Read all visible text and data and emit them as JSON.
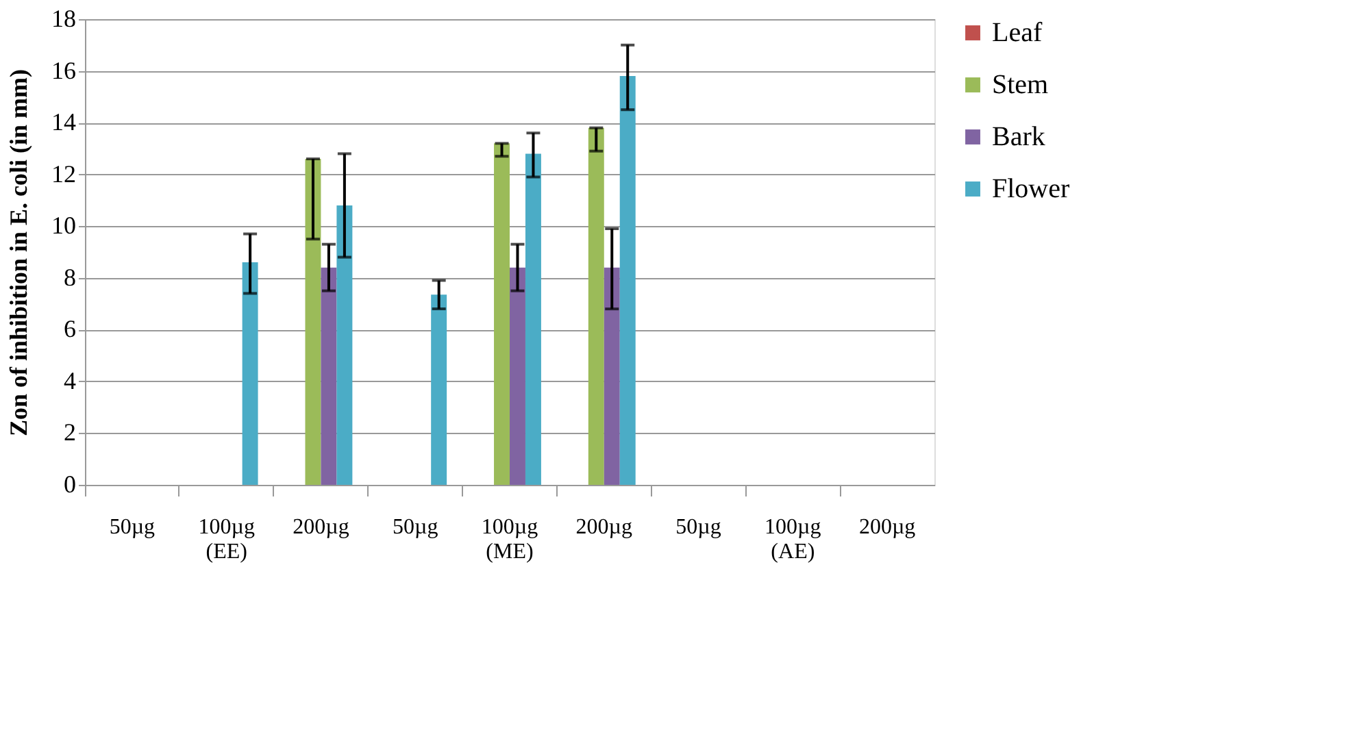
{
  "chart_data": {
    "type": "bar",
    "ylabel": "Zon of inhibition in E. coli (in mm)",
    "categories": [
      "50µg",
      "100µg\n(EE)",
      "200µg",
      "50µg",
      "100µg\n(ME)",
      "200µg",
      "50µg",
      "100µg\n(AE)",
      "200µg"
    ],
    "series": [
      {
        "name": "Leaf",
        "color": "#c0504d",
        "values": [
          null,
          null,
          null,
          null,
          null,
          null,
          null,
          null,
          null
        ]
      },
      {
        "name": "Stem",
        "color": "#9bbb59",
        "values": [
          null,
          null,
          12.6,
          null,
          13.2,
          13.8,
          null,
          null,
          null
        ],
        "errors": [
          null,
          null,
          [
            9.5,
            12.6
          ],
          null,
          [
            12.7,
            13.2
          ],
          [
            12.9,
            13.8
          ],
          null,
          null,
          null
        ]
      },
      {
        "name": "Bark",
        "color": "#8064a2",
        "values": [
          null,
          null,
          8.4,
          null,
          8.4,
          8.4,
          null,
          null,
          null
        ],
        "errors": [
          null,
          null,
          [
            7.5,
            9.3
          ],
          null,
          [
            7.5,
            9.3
          ],
          [
            6.8,
            9.9
          ],
          null,
          null,
          null
        ]
      },
      {
        "name": "Flower",
        "color": "#4bacc6",
        "values": [
          null,
          8.6,
          10.8,
          7.35,
          12.8,
          15.8,
          null,
          null,
          null
        ],
        "errors": [
          null,
          [
            7.4,
            9.7
          ],
          [
            8.8,
            12.8
          ],
          [
            6.8,
            7.9
          ],
          [
            11.9,
            13.6
          ],
          [
            14.5,
            17.0
          ],
          null,
          null,
          null
        ]
      }
    ],
    "ylim": [
      0,
      18
    ],
    "yticks": [
      0,
      2,
      4,
      6,
      8,
      10,
      12,
      14,
      16,
      18
    ],
    "grid": "y",
    "legend": "right"
  }
}
